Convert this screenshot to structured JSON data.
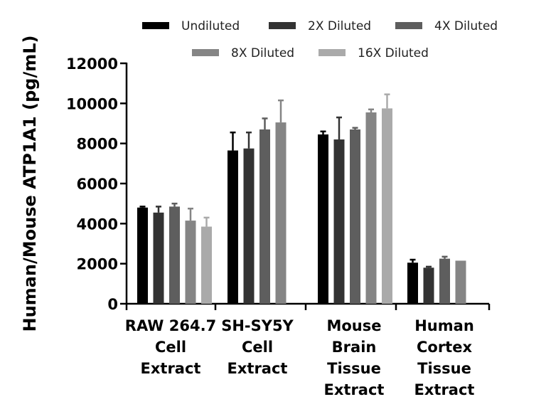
{
  "chart_data": {
    "type": "bar",
    "ylabel": "Human/Mouse ATP1A1 (pg/mL)",
    "ylim": [
      0,
      12000
    ],
    "yticks": [
      0,
      2000,
      4000,
      6000,
      8000,
      10000,
      12000
    ],
    "legend_position": "top",
    "categories": [
      [
        "RAW 264.7",
        "Cell",
        "Extract"
      ],
      [
        "SH-SY5Y",
        "Cell",
        "Extract"
      ],
      [
        "Mouse",
        "Brain",
        "Tissue",
        "Extract"
      ],
      [
        "Human",
        "Cortex",
        "Tissue",
        "Extract"
      ]
    ],
    "series": [
      {
        "name": "Undiluted",
        "color": "#000000",
        "values": [
          4800,
          7650,
          8450,
          2050
        ],
        "errors": [
          50,
          900,
          150,
          150
        ]
      },
      {
        "name": "2X Diluted",
        "color": "#333333",
        "values": [
          4550,
          7750,
          8200,
          1800
        ],
        "errors": [
          300,
          800,
          1100,
          50
        ]
      },
      {
        "name": "4X Diluted",
        "color": "#5e5e5e",
        "values": [
          4850,
          8700,
          8700,
          2250
        ],
        "errors": [
          150,
          550,
          80,
          100
        ]
      },
      {
        "name": "8X Diluted",
        "color": "#858585",
        "values": [
          4150,
          9050,
          9550,
          2150
        ],
        "errors": [
          600,
          1100,
          150,
          0
        ]
      },
      {
        "name": "16X Diluted",
        "color": "#aaaaaa",
        "values": [
          3850,
          null,
          9750,
          null
        ],
        "errors": [
          450,
          null,
          700,
          null
        ]
      }
    ]
  }
}
